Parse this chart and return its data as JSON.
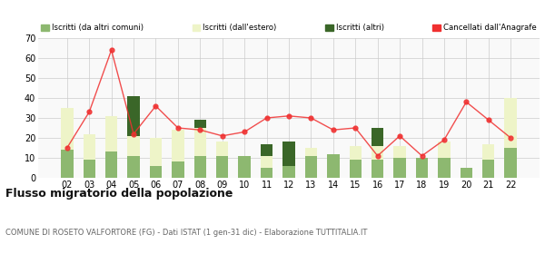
{
  "years": [
    "02",
    "03",
    "04",
    "05",
    "06",
    "07",
    "08",
    "09",
    "10",
    "11",
    "12",
    "13",
    "14",
    "15",
    "16",
    "17",
    "18",
    "19",
    "20",
    "21",
    "22"
  ],
  "iscritti_altri_comuni": [
    14,
    9,
    13,
    11,
    6,
    8,
    11,
    11,
    11,
    5,
    6,
    11,
    12,
    9,
    9,
    10,
    10,
    10,
    5,
    9,
    15
  ],
  "iscritti_estero": [
    21,
    13,
    18,
    10,
    14,
    16,
    14,
    7,
    0,
    6,
    0,
    4,
    0,
    7,
    7,
    6,
    0,
    8,
    0,
    8,
    25
  ],
  "iscritti_altri": [
    0,
    0,
    0,
    20,
    0,
    0,
    4,
    0,
    0,
    6,
    12,
    0,
    0,
    0,
    9,
    0,
    0,
    0,
    0,
    0,
    0
  ],
  "cancellati": [
    15,
    33,
    64,
    22,
    36,
    25,
    24,
    21,
    23,
    30,
    31,
    30,
    24,
    25,
    11,
    21,
    11,
    19,
    38,
    29,
    20
  ],
  "color_altri_comuni": "#8db870",
  "color_estero": "#eef4c8",
  "color_altri": "#3a6628",
  "color_cancellati": "#f03030",
  "legend_labels": [
    "Iscritti (da altri comuni)",
    "Iscritti (dall'estero)",
    "Iscritti (altri)",
    "Cancellati dall'Anagrafe"
  ],
  "title": "Flusso migratorio della popolazione",
  "subtitle": "COMUNE DI ROSETO VALFORTORE (FG) - Dati ISTAT (1 gen-31 dic) - Elaborazione TUTTITALIA.IT",
  "ylim": [
    0,
    70
  ],
  "yticks": [
    0,
    10,
    20,
    30,
    40,
    50,
    60,
    70
  ],
  "bg_color": "#f9f9f9"
}
